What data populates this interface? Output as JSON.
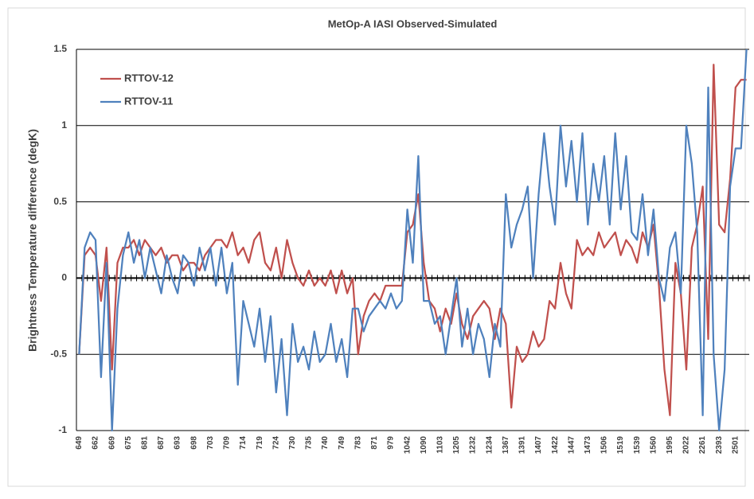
{
  "chart_data": {
    "type": "line",
    "title": "MetOp-A  IASI Observed-Simulated",
    "y_label": "Brightness Temperature difference (degK)",
    "categories": [
      "649",
      null,
      null,
      "662",
      null,
      null,
      "669",
      null,
      null,
      "675",
      null,
      null,
      "681",
      null,
      null,
      "687",
      null,
      null,
      "693",
      null,
      null,
      "698",
      null,
      null,
      "703",
      null,
      null,
      "709",
      null,
      null,
      "714",
      null,
      null,
      "719",
      null,
      null,
      "724",
      null,
      null,
      "730",
      null,
      null,
      "735",
      null,
      null,
      "740",
      null,
      null,
      "749",
      null,
      null,
      "783",
      null,
      null,
      "871",
      null,
      null,
      "979",
      null,
      null,
      "1042",
      null,
      null,
      "1090",
      null,
      null,
      "1103",
      null,
      null,
      "1205",
      null,
      null,
      "1232",
      null,
      null,
      "1234",
      null,
      null,
      "1367",
      null,
      null,
      "1391",
      null,
      null,
      "1407",
      null,
      null,
      "1422",
      null,
      null,
      "1447",
      null,
      null,
      "1473",
      null,
      null,
      "1506",
      null,
      null,
      "1519",
      null,
      null,
      "1539",
      null,
      null,
      "1560",
      null,
      null,
      "1995",
      null,
      null,
      "2022",
      null,
      null,
      "2261",
      null,
      null,
      "2393",
      null,
      null,
      "2501",
      null,
      null
    ],
    "series": [
      {
        "name": "RTTOV-12",
        "color": "#c0504d",
        "values": [
          -0.5,
          0.15,
          0.2,
          0.15,
          -0.15,
          0.2,
          -0.6,
          0.1,
          0.2,
          0.2,
          0.25,
          0.15,
          0.25,
          0.2,
          0.15,
          0.2,
          0.1,
          0.15,
          0.15,
          0.05,
          0.1,
          0.1,
          0.05,
          0.15,
          0.2,
          0.25,
          0.25,
          0.2,
          0.3,
          0.15,
          0.2,
          0.1,
          0.25,
          0.3,
          0.1,
          0.05,
          0.2,
          0.0,
          0.25,
          0.1,
          0.0,
          -0.05,
          0.05,
          -0.05,
          0.0,
          -0.05,
          0.05,
          -0.1,
          0.05,
          -0.1,
          0.0,
          -0.5,
          -0.25,
          -0.15,
          -0.1,
          -0.15,
          -0.05,
          -0.05,
          -0.05,
          -0.05,
          0.3,
          0.35,
          0.55,
          0.1,
          -0.15,
          -0.2,
          -0.35,
          -0.2,
          -0.3,
          -0.1,
          -0.3,
          -0.4,
          -0.25,
          -0.2,
          -0.15,
          -0.2,
          -0.4,
          -0.2,
          -0.3,
          -0.85,
          -0.45,
          -0.55,
          -0.5,
          -0.35,
          -0.45,
          -0.4,
          -0.15,
          -0.2,
          0.1,
          -0.1,
          -0.2,
          0.25,
          0.15,
          0.2,
          0.15,
          0.3,
          0.2,
          0.25,
          0.3,
          0.15,
          0.25,
          0.2,
          0.1,
          0.3,
          0.2,
          0.35,
          -0.05,
          -0.6,
          -0.9,
          0.1,
          -0.1,
          -0.6,
          0.2,
          0.35,
          0.6,
          -0.4,
          1.4,
          0.35,
          0.3,
          0.65,
          1.25,
          1.3,
          1.3
        ]
      },
      {
        "name": "RTTOV-11",
        "color": "#4f81bd",
        "values": [
          -0.5,
          0.2,
          0.3,
          0.25,
          -0.65,
          0.1,
          -1.0,
          -0.2,
          0.15,
          0.3,
          0.1,
          0.25,
          0.0,
          0.2,
          0.05,
          -0.1,
          0.15,
          0.0,
          -0.1,
          0.15,
          0.1,
          -0.05,
          0.2,
          0.05,
          0.2,
          -0.05,
          0.2,
          -0.1,
          0.1,
          -0.7,
          -0.15,
          -0.3,
          -0.45,
          -0.2,
          -0.55,
          -0.25,
          -0.75,
          -0.4,
          -0.9,
          -0.3,
          -0.55,
          -0.45,
          -0.6,
          -0.35,
          -0.55,
          -0.5,
          -0.3,
          -0.55,
          -0.4,
          -0.65,
          -0.2,
          -0.2,
          -0.35,
          -0.25,
          -0.2,
          -0.15,
          -0.2,
          -0.1,
          -0.2,
          -0.15,
          0.45,
          0.1,
          0.8,
          -0.15,
          -0.15,
          -0.3,
          -0.25,
          -0.5,
          -0.25,
          0.0,
          -0.45,
          -0.2,
          -0.5,
          -0.3,
          -0.4,
          -0.65,
          -0.3,
          -0.45,
          0.55,
          0.2,
          0.35,
          0.45,
          0.6,
          0.0,
          0.55,
          0.95,
          0.6,
          0.35,
          1.0,
          0.6,
          0.9,
          0.5,
          0.95,
          0.35,
          0.75,
          0.5,
          0.8,
          0.35,
          0.95,
          0.45,
          0.8,
          0.3,
          0.25,
          0.55,
          0.15,
          0.45,
          0.0,
          -0.15,
          0.2,
          0.3,
          -0.1,
          1.0,
          0.75,
          0.3,
          -0.9,
          1.25,
          -0.5,
          -1.0,
          -0.6,
          0.6,
          0.85,
          0.85,
          1.5
        ]
      }
    ],
    "ylim": [
      -1,
      1.5
    ],
    "yticks": [
      -1,
      -0.5,
      0,
      0.5,
      1,
      1.5
    ],
    "grid": true,
    "legend": "upper-left"
  }
}
